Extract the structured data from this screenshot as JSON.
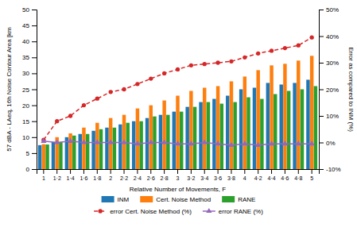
{
  "chart_data": {
    "type": "bar",
    "categories": [
      "1",
      "1·2",
      "1·4",
      "1·6",
      "1·8",
      "2",
      "2·2",
      "2·4",
      "2·6",
      "2·8",
      "3",
      "3·2",
      "3·4",
      "3·6",
      "3·8",
      "4",
      "4·2",
      "4·4",
      "4·6",
      "4·8",
      "5"
    ],
    "x_label": "Relative Number of Movements, F",
    "y_label": "57 dBA - LAeq, 16h Noise Contour Area [km",
    "y2_label": "Error as compared to INM (%)",
    "ylim": [
      0,
      50
    ],
    "yticks": [
      0,
      5,
      10,
      15,
      20,
      25,
      30,
      35,
      40,
      45,
      50
    ],
    "y2lim": [
      -10,
      50
    ],
    "y2ticks": [
      {
        "value": -10,
        "label": "-10%"
      },
      {
        "value": 0,
        "label": "0%"
      },
      {
        "value": 10,
        "label": "10%"
      },
      {
        "value": 20,
        "label": "20%"
      },
      {
        "value": 30,
        "label": "30%"
      },
      {
        "value": 40,
        "label": "40%"
      },
      {
        "value": 50,
        "label": "50%"
      }
    ],
    "grid": false,
    "legend": "bottom",
    "series": [
      {
        "name": "INM",
        "type": "bar",
        "values": [
          7.5,
          8.5,
          10.0,
          11.0,
          12.0,
          13.0,
          14.0,
          15.0,
          16.0,
          17.0,
          18.0,
          19.5,
          21.0,
          22.0,
          23.0,
          25.0,
          25.5,
          27.0,
          26.5,
          27.0,
          28.0
        ]
      },
      {
        "name": "Cert. Noise Method",
        "type": "bar",
        "values": [
          7.8,
          10.0,
          11.2,
          13.0,
          14.5,
          16.0,
          17.0,
          19.0,
          20.0,
          21.5,
          23.0,
          24.5,
          25.5,
          26.0,
          27.5,
          29.0,
          31.0,
          32.5,
          33.0,
          34.0,
          35.5
        ]
      },
      {
        "name": "RANE",
        "type": "bar",
        "values": [
          7.7,
          8.5,
          10.5,
          11.0,
          12.5,
          13.0,
          14.5,
          15.0,
          16.5,
          17.0,
          18.0,
          19.5,
          21.0,
          20.5,
          21.0,
          22.5,
          22.0,
          23.5,
          24.5,
          25.0,
          26.0
        ]
      },
      {
        "name": "error Cert. Noise Method (%)",
        "type": "line",
        "axis": "y2",
        "marker": "circle",
        "line_style": "dashed",
        "values": [
          1.0,
          8.0,
          10.0,
          14.0,
          16.5,
          19.0,
          20.0,
          22.0,
          24.0,
          26.0,
          27.5,
          29.0,
          29.5,
          30.0,
          30.5,
          32.0,
          33.5,
          34.5,
          35.5,
          36.5,
          39.5
        ]
      },
      {
        "name": "error RANE (%)",
        "type": "line",
        "axis": "y2",
        "marker": "triangle",
        "line_style": "solid",
        "values": [
          0.5,
          0.0,
          0.5,
          0.0,
          0.0,
          0.0,
          0.0,
          -0.5,
          0.0,
          0.0,
          -0.5,
          -0.5,
          0.0,
          -0.5,
          -1.0,
          -0.5,
          -1.0,
          -0.5,
          -0.5,
          -0.5,
          -0.5
        ]
      }
    ]
  }
}
